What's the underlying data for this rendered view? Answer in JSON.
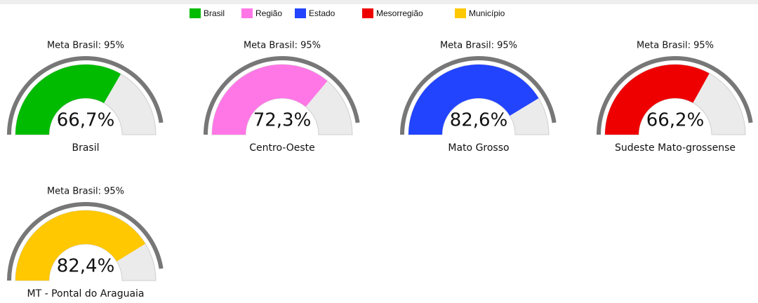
{
  "legend": [
    {
      "name": "Brasil",
      "color": "#00bb00"
    },
    {
      "name": "Região",
      "color": "#ff77e6"
    },
    {
      "name": "Estado",
      "color": "#2244ff"
    },
    {
      "name": "Mesorregião",
      "color": "#ee0000"
    },
    {
      "name": "Município",
      "color": "#ffc800"
    }
  ],
  "chart_data": [
    {
      "type": "gauge",
      "title": "Brasil",
      "values": [
        66.7
      ],
      "value_labels": [
        "66,7%"
      ],
      "color": "#00bb00",
      "ylim": [
        0,
        100
      ],
      "target": 95,
      "target_label": "Meta Brasil: 95%"
    },
    {
      "type": "gauge",
      "title": "Centro-Oeste",
      "values": [
        72.3
      ],
      "value_labels": [
        "72,3%"
      ],
      "color": "#ff77e6",
      "ylim": [
        0,
        100
      ],
      "target": 95,
      "target_label": "Meta Brasil: 95%"
    },
    {
      "type": "gauge",
      "title": "Mato Grosso",
      "values": [
        82.6
      ],
      "value_labels": [
        "82,6%"
      ],
      "color": "#2244ff",
      "ylim": [
        0,
        100
      ],
      "target": 95,
      "target_label": "Meta Brasil: 95%"
    },
    {
      "type": "gauge",
      "title": "Sudeste Mato-grossense",
      "values": [
        66.2
      ],
      "value_labels": [
        "66,2%"
      ],
      "color": "#ee0000",
      "ylim": [
        0,
        100
      ],
      "target": 95,
      "target_label": "Meta Brasil: 95%"
    },
    {
      "type": "gauge",
      "title": "MT - Pontal do Araguaia",
      "values": [
        82.4
      ],
      "value_labels": [
        "82,4%"
      ],
      "color": "#ffc800",
      "ylim": [
        0,
        100
      ],
      "target": 95,
      "target_label": "Meta Brasil: 95%"
    }
  ]
}
